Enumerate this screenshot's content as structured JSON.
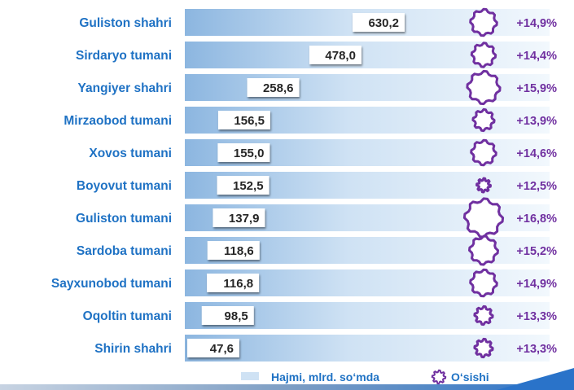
{
  "chart_data": {
    "type": "bar",
    "orientation": "horizontal",
    "categories": [
      "Guliston shahri",
      "Sirdaryo tumani",
      "Yangiyer shahri",
      "Mirzaobod tumani",
      "Xovos tumani",
      "Boyovut tumani",
      "Guliston tumani",
      "Sardoba tumani",
      "Sayxunobod tumani",
      "Oqoltin tumani",
      "Shirin shahri"
    ],
    "series": [
      {
        "name": "Hajmi, mlrd. so‘mda",
        "values": [
          630.2,
          478.0,
          258.6,
          156.5,
          155.0,
          152.5,
          137.9,
          118.6,
          116.8,
          98.5,
          47.6
        ],
        "labels": [
          "630,2",
          "478,0",
          "258,6",
          "156,5",
          "155,0",
          "152,5",
          "137,9",
          "118,6",
          "116,8",
          "98,5",
          "47,6"
        ]
      },
      {
        "name": "O‘sishi",
        "values": [
          14.9,
          14.4,
          15.9,
          13.9,
          14.6,
          12.5,
          16.8,
          15.2,
          14.9,
          13.3,
          13.3
        ],
        "labels": [
          "+14,9%",
          "+14,4%",
          "+15,9%",
          "+13,9%",
          "+14,6%",
          "+12,5%",
          "+16,8%",
          "+15,2%",
          "+14,9%",
          "+13,3%",
          "+13,3%"
        ]
      }
    ],
    "legend": "bottom-center",
    "colors": {
      "category_label": "#1f72c4",
      "bar_light": "#f2f8fd",
      "bar_dark": "#8cb6e0",
      "value_box": "#ffffff",
      "value_text": "#262626",
      "gear": "#7030a0",
      "footer_band": "#7d9ec4",
      "footer_accent": "#2a73c9"
    }
  }
}
